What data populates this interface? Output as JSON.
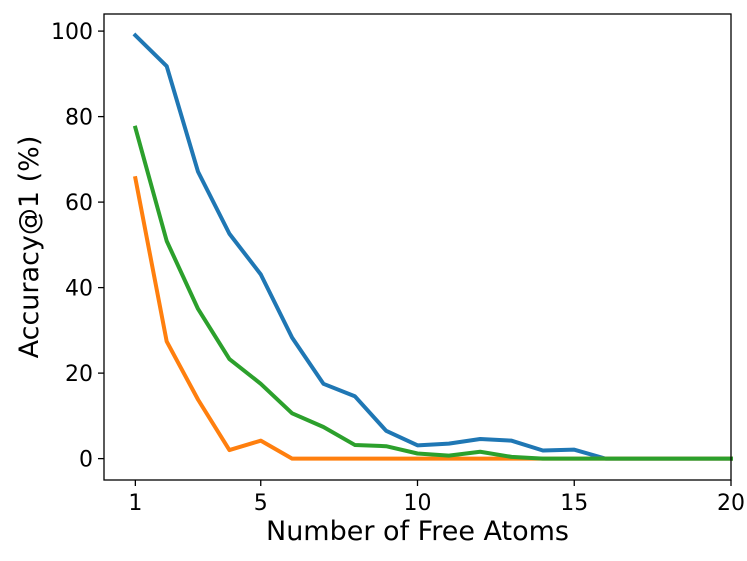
{
  "chart_data": {
    "type": "line",
    "title": "",
    "xlabel": "Number of Free Atoms",
    "ylabel": "Accuracy@1 (%)",
    "xlim": [
      0,
      20
    ],
    "ylim": [
      -5,
      104
    ],
    "xticks": [
      1,
      5,
      10,
      15,
      20
    ],
    "yticks": [
      0,
      20,
      40,
      60,
      80,
      100
    ],
    "grid": false,
    "legend": "none",
    "x": [
      1,
      2,
      3,
      4,
      5,
      6,
      7,
      8,
      9,
      10,
      11,
      12,
      13,
      14,
      15,
      16,
      17,
      18,
      19,
      20
    ],
    "series": [
      {
        "color": "#1f77b4",
        "values": [
          99.0,
          91.8,
          67.1,
          52.6,
          43.1,
          28.3,
          17.5,
          14.6,
          6.5,
          3.1,
          3.5,
          4.6,
          4.2,
          1.9,
          2.1,
          0,
          0,
          0,
          0,
          0
        ]
      },
      {
        "color": "#ff7f0e",
        "values": [
          65.6,
          27.4,
          13.8,
          2.0,
          4.2,
          0,
          0,
          0,
          0,
          0,
          0,
          0,
          0,
          0,
          0,
          0,
          0,
          0,
          0,
          0
        ]
      },
      {
        "color": "#2ca02c",
        "values": [
          77.4,
          50.9,
          35.0,
          23.3,
          17.5,
          10.6,
          7.4,
          3.2,
          2.9,
          1.2,
          0.7,
          1.6,
          0.4,
          0.0,
          0.0,
          0.0,
          0.0,
          0.0,
          0.0,
          0.0
        ]
      }
    ]
  }
}
